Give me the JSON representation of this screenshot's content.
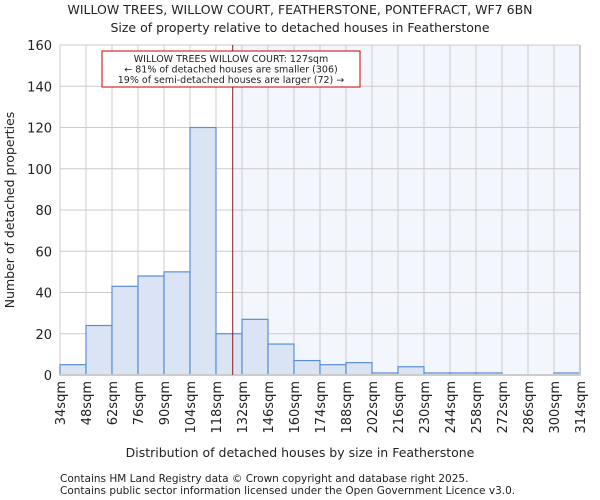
{
  "chart_data": {
    "type": "bar",
    "title": "WILLOW TREES, WILLOW COURT, FEATHERSTONE, PONTEFRACT, WF7 6BN",
    "subtitle": "Size of property relative to detached houses in Featherstone",
    "xlabel": "Distribution of detached houses by size in Featherstone",
    "ylabel": "Number of detached properties",
    "ylim": [
      0,
      160
    ],
    "yticks": [
      0,
      20,
      40,
      60,
      80,
      100,
      120,
      140,
      160
    ],
    "bin_edges": [
      34,
      48,
      62,
      76,
      90,
      104,
      118,
      132,
      146,
      160,
      174,
      188,
      202,
      216,
      230,
      244,
      258,
      272,
      286,
      300,
      314
    ],
    "xtick_labels": [
      "34sqm",
      "48sqm",
      "62sqm",
      "76sqm",
      "90sqm",
      "104sqm",
      "118sqm",
      "132sqm",
      "146sqm",
      "160sqm",
      "174sqm",
      "188sqm",
      "202sqm",
      "216sqm",
      "230sqm",
      "244sqm",
      "258sqm",
      "272sqm",
      "286sqm",
      "300sqm",
      "314sqm"
    ],
    "values": [
      5,
      24,
      43,
      48,
      50,
      120,
      20,
      27,
      15,
      7,
      5,
      6,
      1,
      4,
      1,
      1,
      1,
      0,
      0,
      1
    ],
    "property_value": 127,
    "annotation": [
      "WILLOW TREES WILLOW COURT: 127sqm",
      "← 81% of detached houses are smaller (306)",
      "19% of semi-detached houses are larger (72) →"
    ],
    "grid": true,
    "colors": {
      "bar_fill": "#dae4f4",
      "bar_edge": "#5a8fd6",
      "highlight_bg": "#f3f6fd",
      "marker": "#8b1a1a",
      "annotation_border": "#cc0000"
    }
  },
  "footer": [
    "Contains HM Land Registry data © Crown copyright and database right 2025.",
    "Contains public sector information licensed under the Open Government Licence v3.0."
  ]
}
